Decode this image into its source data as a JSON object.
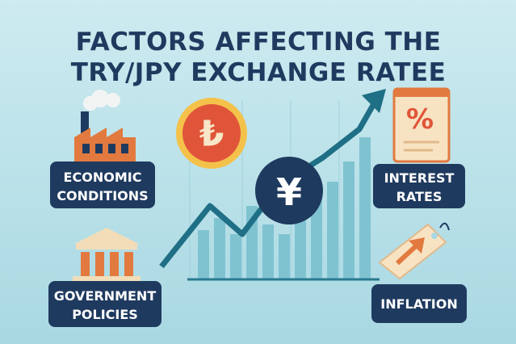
{
  "header": {
    "title_lines": [
      "FACTORS AFFECTING THE",
      "TRY/JPY EXCHANGE RATEE"
    ]
  },
  "factors": [
    {
      "lines": [
        "ECONOMIC",
        "CONDITIONS"
      ]
    },
    {
      "lines": [
        "INTEREST",
        "RATES"
      ]
    },
    {
      "lines": [
        "GOVERNMENT",
        "POLICIES"
      ]
    },
    {
      "lines": [
        "INFLATION"
      ]
    }
  ],
  "icons": {
    "lira": "₺",
    "yen": "¥",
    "percent": "%"
  }
}
